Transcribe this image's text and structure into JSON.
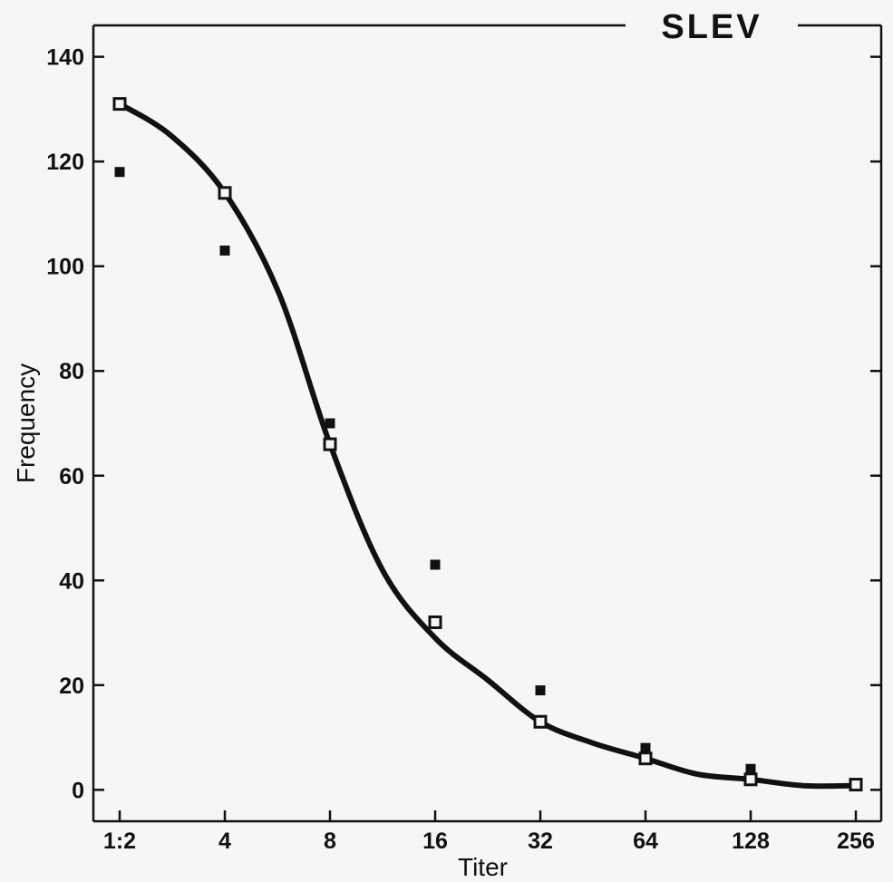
{
  "chart_data": {
    "type": "scatter",
    "title": "SLEV",
    "xlabel": "Titer",
    "ylabel": "Frequency",
    "x_scale": "log2",
    "x_ticks": [
      "1:2",
      "4",
      "8",
      "16",
      "32",
      "64",
      "128",
      "256"
    ],
    "x_tick_values": [
      2,
      4,
      8,
      16,
      32,
      64,
      128,
      256
    ],
    "y_ticks": [
      "0",
      "20",
      "40",
      "60",
      "80",
      "100",
      "120",
      "140"
    ],
    "y_tick_values": [
      0,
      20,
      40,
      60,
      80,
      100,
      120,
      140
    ],
    "ylim": [
      -6,
      146
    ],
    "grid": false,
    "series": [
      {
        "marker": "filled-square",
        "color": "#111111",
        "x": [
          2,
          4,
          8,
          16,
          32,
          64,
          128,
          256
        ],
        "values": [
          118,
          103,
          70,
          43,
          19,
          8,
          4,
          1
        ]
      },
      {
        "marker": "open-square",
        "color": "#111111",
        "x": [
          2,
          4,
          8,
          16,
          32,
          64,
          128,
          256
        ],
        "values": [
          131,
          114,
          66,
          32,
          13,
          6,
          2,
          1
        ]
      }
    ],
    "curve": {
      "style": "solid",
      "x": [
        2,
        2.8,
        4,
        5.7,
        8,
        11.3,
        16,
        22.6,
        32,
        45,
        64,
        90,
        128,
        181,
        256
      ],
      "values": [
        131,
        125,
        114,
        95,
        66,
        42,
        29,
        21,
        13,
        9,
        6,
        3,
        2,
        0.8,
        0.8
      ]
    }
  }
}
